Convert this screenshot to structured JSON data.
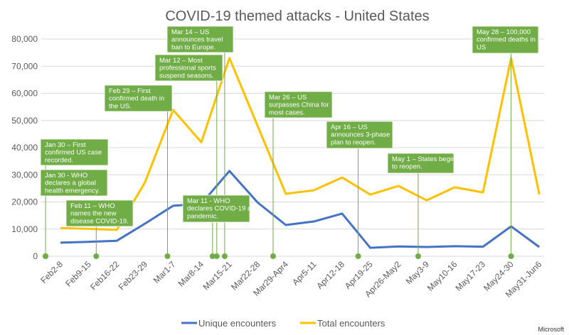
{
  "chart_data": {
    "type": "line",
    "title": "COVID-19 themed attacks - United States",
    "categories": [
      "Feb2-8",
      "Feb9-15",
      "Feb16-22",
      "Feb23-29",
      "Mar1-7",
      "Mar8-14",
      "Mar15-21",
      "Mar22-28",
      "Mar29-Apr4",
      "Apr5-11",
      "Apr12-18",
      "Apr19-25",
      "Apr26-May2",
      "May3-9",
      "May10-16",
      "May17-23",
      "May24-30",
      "May31-Jun6"
    ],
    "ylim": [
      0,
      80000
    ],
    "yticks": [
      0,
      10000,
      20000,
      30000,
      40000,
      50000,
      60000,
      70000,
      80000
    ],
    "ytick_labels": [
      "0",
      "10,000",
      "20,000",
      "30,000",
      "40,000",
      "50,000",
      "60,000",
      "70,000",
      "80,000"
    ],
    "grid": true,
    "legend_position": "bottom",
    "series": [
      {
        "name": "Unique encounters",
        "color": "#4472C4",
        "values": [
          5000,
          5300,
          5700,
          12000,
          18600,
          19300,
          31400,
          19800,
          11500,
          12800,
          15700,
          3100,
          3600,
          3400,
          3700,
          3500,
          11000,
          3400
        ]
      },
      {
        "name": "Total encounters",
        "color": "#FFC000",
        "values": [
          10400,
          10100,
          9700,
          27200,
          53900,
          42000,
          73000,
          48000,
          23000,
          24300,
          29000,
          22700,
          25900,
          20600,
          25400,
          23500,
          73000,
          22800
        ]
      }
    ],
    "annotation_color": "#70AD47",
    "annotations": [
      {
        "at": -0.53,
        "lines": [
          "Jan 30 – First",
          "confirmed US case",
          "recorded."
        ]
      },
      {
        "at": -0.53,
        "lines": [
          "Jan 30 - WHO",
          "declares a global",
          "health emergency."
        ]
      },
      {
        "at": 1.27,
        "lines": [
          "Feb 11 – WHO",
          "names the new",
          "disease COVID-19."
        ]
      },
      {
        "at": 3.8,
        "lines": [
          "Feb 29 – First",
          "confirmed death in",
          "the US."
        ]
      },
      {
        "at": 5.55,
        "lines": [
          "Mar 12 – Most",
          "professional sports",
          "suspend seasons."
        ]
      },
      {
        "at": 5.83,
        "lines": [
          "Mar 14 – US",
          "announces travel",
          "ban to Europe."
        ]
      },
      {
        "at": 5.4,
        "lines": [
          "Mar 11 - WHO",
          "declares COVID-19 a",
          "pandemic."
        ]
      },
      {
        "at": 7.55,
        "lines": [
          "Mar 26 – US",
          "surpasses China for",
          "most cases."
        ]
      },
      {
        "at": 10.57,
        "lines": [
          "Apr 16 – US",
          "announces 3-phase",
          "plan to reopen."
        ]
      },
      {
        "at": 12.7,
        "lines": [
          "May 1 – States begin",
          "to reopen."
        ]
      },
      {
        "at": 16.0,
        "lines": [
          "May 28 – 100,000",
          "confirmed deaths in",
          "US"
        ]
      }
    ]
  },
  "footer": {
    "brand": "Microsoft"
  }
}
